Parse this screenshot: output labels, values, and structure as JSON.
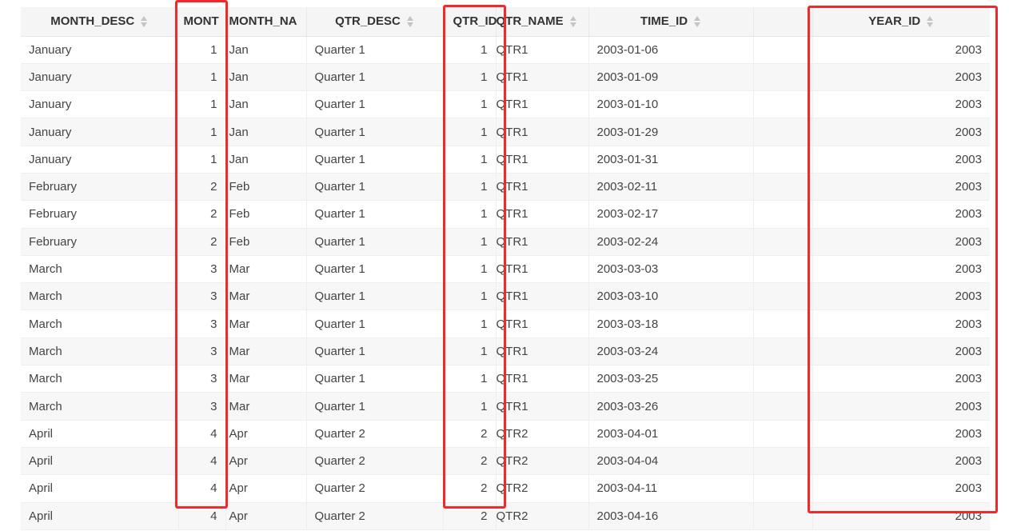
{
  "columns": [
    {
      "key": "month_desc",
      "label": "MONTH_DESC"
    },
    {
      "key": "month_id",
      "label": "MONT"
    },
    {
      "key": "month_name",
      "label": "MONTH_NA"
    },
    {
      "key": "qtr_desc",
      "label": "QTR_DESC"
    },
    {
      "key": "qtr_id",
      "label": "QTR_ID"
    },
    {
      "key": "qtr_name",
      "label": "QTR_NAME"
    },
    {
      "key": "time_id",
      "label": "TIME_ID"
    },
    {
      "key": "blank",
      "label": ""
    },
    {
      "key": "year_id",
      "label": "YEAR_ID"
    }
  ],
  "icons": {
    "sort": "sort-arrows-icon"
  },
  "colors": {
    "highlight": "#f02a2a",
    "header_bg": "#f5f5f5",
    "stripe_bg": "#f7f7f7"
  },
  "rows": [
    [
      "January",
      "1",
      "Jan",
      "Quarter 1",
      "1",
      "QTR1",
      "2003-01-06",
      "",
      "2003"
    ],
    [
      "January",
      "1",
      "Jan",
      "Quarter 1",
      "1",
      "QTR1",
      "2003-01-09",
      "",
      "2003"
    ],
    [
      "January",
      "1",
      "Jan",
      "Quarter 1",
      "1",
      "QTR1",
      "2003-01-10",
      "",
      "2003"
    ],
    [
      "January",
      "1",
      "Jan",
      "Quarter 1",
      "1",
      "QTR1",
      "2003-01-29",
      "",
      "2003"
    ],
    [
      "January",
      "1",
      "Jan",
      "Quarter 1",
      "1",
      "QTR1",
      "2003-01-31",
      "",
      "2003"
    ],
    [
      "February",
      "2",
      "Feb",
      "Quarter 1",
      "1",
      "QTR1",
      "2003-02-11",
      "",
      "2003"
    ],
    [
      "February",
      "2",
      "Feb",
      "Quarter 1",
      "1",
      "QTR1",
      "2003-02-17",
      "",
      "2003"
    ],
    [
      "February",
      "2",
      "Feb",
      "Quarter 1",
      "1",
      "QTR1",
      "2003-02-24",
      "",
      "2003"
    ],
    [
      "March",
      "3",
      "Mar",
      "Quarter 1",
      "1",
      "QTR1",
      "2003-03-03",
      "",
      "2003"
    ],
    [
      "March",
      "3",
      "Mar",
      "Quarter 1",
      "1",
      "QTR1",
      "2003-03-10",
      "",
      "2003"
    ],
    [
      "March",
      "3",
      "Mar",
      "Quarter 1",
      "1",
      "QTR1",
      "2003-03-18",
      "",
      "2003"
    ],
    [
      "March",
      "3",
      "Mar",
      "Quarter 1",
      "1",
      "QTR1",
      "2003-03-24",
      "",
      "2003"
    ],
    [
      "March",
      "3",
      "Mar",
      "Quarter 1",
      "1",
      "QTR1",
      "2003-03-25",
      "",
      "2003"
    ],
    [
      "March",
      "3",
      "Mar",
      "Quarter 1",
      "1",
      "QTR1",
      "2003-03-26",
      "",
      "2003"
    ],
    [
      "April",
      "4",
      "Apr",
      "Quarter 2",
      "2",
      "QTR2",
      "2003-04-01",
      "",
      "2003"
    ],
    [
      "April",
      "4",
      "Apr",
      "Quarter 2",
      "2",
      "QTR2",
      "2003-04-04",
      "",
      "2003"
    ],
    [
      "April",
      "4",
      "Apr",
      "Quarter 2",
      "2",
      "QTR2",
      "2003-04-11",
      "",
      "2003"
    ],
    [
      "April",
      "4",
      "Apr",
      "Quarter 2",
      "2",
      "QTR2",
      "2003-04-16",
      "",
      "2003"
    ]
  ]
}
